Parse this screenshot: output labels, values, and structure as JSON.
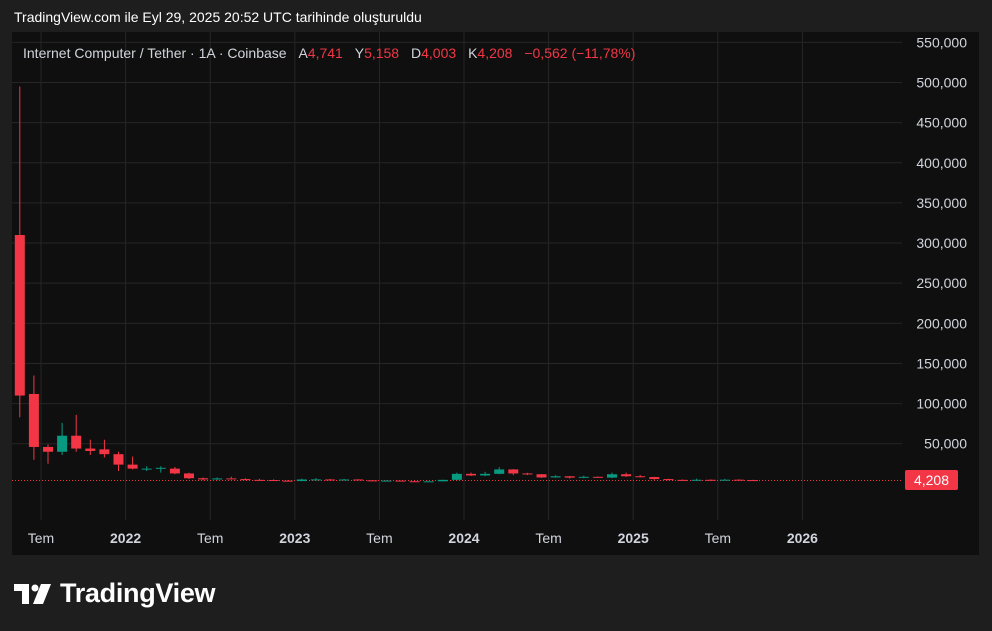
{
  "caption": "TradingView.com ile Eyl 29, 2025 20:52 UTC tarihinde oluşturuldu",
  "brand": {
    "name": "TradingView",
    "icon": "tradingview-logo-icon"
  },
  "legend": {
    "symbol": "Internet Computer / Tether · 1A · Coinbase",
    "open_label": "A",
    "open": "4,741",
    "high_label": "Y",
    "high": "5,158",
    "low_label": "D",
    "low": "4,003",
    "close_label": "K",
    "close": "4,208",
    "change": "−0,562 (−11,78%)"
  },
  "last_price_label": "4,208",
  "colors": {
    "up": "#089981",
    "down": "#f23645",
    "background": "#0f0f0f",
    "grid": "#262626",
    "axis_text": "#d1d4dc"
  },
  "chart_data": {
    "type": "candlestick",
    "title": "Internet Computer / Tether · 1A · Coinbase",
    "interval": "1 month",
    "y_axis": {
      "position": "right",
      "ylim": [
        -35,
        556
      ],
      "ticks": [
        50,
        100,
        150,
        200,
        250,
        300,
        350,
        400,
        450,
        500,
        550
      ],
      "tick_labels": [
        "50,000",
        "100,000",
        "150,000",
        "200,000",
        "250,000",
        "300,000",
        "350,000",
        "400,000",
        "450,000",
        "500,000",
        "550,000"
      ]
    },
    "x_axis": {
      "tick_labels": [
        "Tem",
        "2022",
        "Tem",
        "2023",
        "Tem",
        "2024",
        "Tem",
        "2025",
        "Tem",
        "2026"
      ],
      "tick_dates": [
        "2021-07",
        "2022-01",
        "2022-07",
        "2023-01",
        "2023-07",
        "2024-01",
        "2024-07",
        "2025-01",
        "2025-07",
        "2026-01"
      ],
      "range": [
        "2021-04",
        "2026-07"
      ]
    },
    "grid": true,
    "last_price": 4.208,
    "candles": [
      {
        "date": "2021-05",
        "open": 310,
        "high": 495,
        "low": 83,
        "close": 110
      },
      {
        "date": "2021-06",
        "open": 112,
        "high": 135,
        "low": 30,
        "close": 46
      },
      {
        "date": "2021-07",
        "open": 46,
        "high": 49,
        "low": 25,
        "close": 40
      },
      {
        "date": "2021-08",
        "open": 40,
        "high": 76,
        "low": 36,
        "close": 60
      },
      {
        "date": "2021-09",
        "open": 60,
        "high": 86,
        "low": 40,
        "close": 44
      },
      {
        "date": "2021-10",
        "open": 44,
        "high": 55,
        "low": 36,
        "close": 41
      },
      {
        "date": "2021-11",
        "open": 43,
        "high": 55,
        "low": 33,
        "close": 37
      },
      {
        "date": "2021-12",
        "open": 37,
        "high": 40,
        "low": 16,
        "close": 24
      },
      {
        "date": "2022-01",
        "open": 24,
        "high": 34,
        "low": 18,
        "close": 19
      },
      {
        "date": "2022-02",
        "open": 18,
        "high": 22,
        "low": 16,
        "close": 19
      },
      {
        "date": "2022-03",
        "open": 19,
        "high": 22,
        "low": 14,
        "close": 20
      },
      {
        "date": "2022-04",
        "open": 19,
        "high": 21,
        "low": 12,
        "close": 13
      },
      {
        "date": "2022-05",
        "open": 13,
        "high": 14,
        "low": 6,
        "close": 7
      },
      {
        "date": "2022-06",
        "open": 7,
        "high": 8,
        "low": 4.5,
        "close": 5.5
      },
      {
        "date": "2022-07",
        "open": 5.5,
        "high": 8,
        "low": 5,
        "close": 6.8
      },
      {
        "date": "2022-08",
        "open": 6.8,
        "high": 9,
        "low": 5.8,
        "close": 6
      },
      {
        "date": "2022-09",
        "open": 6,
        "high": 7,
        "low": 4.5,
        "close": 5
      },
      {
        "date": "2022-10",
        "open": 5,
        "high": 6.2,
        "low": 4.5,
        "close": 4.8
      },
      {
        "date": "2022-11",
        "open": 4.8,
        "high": 5.6,
        "low": 3.5,
        "close": 4
      },
      {
        "date": "2022-12",
        "open": 4,
        "high": 4.5,
        "low": 3.2,
        "close": 3.5
      },
      {
        "date": "2023-01",
        "open": 3.5,
        "high": 6.5,
        "low": 3.4,
        "close": 5.5
      },
      {
        "date": "2023-02",
        "open": 5.5,
        "high": 7.2,
        "low": 5,
        "close": 5.6
      },
      {
        "date": "2023-03",
        "open": 5.5,
        "high": 6.3,
        "low": 4.2,
        "close": 5.4
      },
      {
        "date": "2023-04",
        "open": 5.4,
        "high": 6.2,
        "low": 4.8,
        "close": 5.5
      },
      {
        "date": "2023-05",
        "open": 5.5,
        "high": 5.8,
        "low": 4.2,
        "close": 4.4
      },
      {
        "date": "2023-06",
        "open": 4.4,
        "high": 4.6,
        "low": 3.2,
        "close": 3.9
      },
      {
        "date": "2023-07",
        "open": 3.9,
        "high": 4.6,
        "low": 3.8,
        "close": 4.1
      },
      {
        "date": "2023-08",
        "open": 4.1,
        "high": 4.2,
        "low": 3.2,
        "close": 3.3
      },
      {
        "date": "2023-09",
        "open": 3.3,
        "high": 3.5,
        "low": 2.9,
        "close": 3.1
      },
      {
        "date": "2023-10",
        "open": 3.1,
        "high": 3.4,
        "low": 2.9,
        "close": 3.2
      },
      {
        "date": "2023-11",
        "open": 3.2,
        "high": 5.2,
        "low": 3.1,
        "close": 5
      },
      {
        "date": "2023-12",
        "open": 5,
        "high": 14,
        "low": 4.8,
        "close": 12.5
      },
      {
        "date": "2024-01",
        "open": 12.5,
        "high": 14,
        "low": 9.8,
        "close": 10.5
      },
      {
        "date": "2024-02",
        "open": 10.5,
        "high": 15,
        "low": 9.6,
        "close": 12.5
      },
      {
        "date": "2024-03",
        "open": 12.5,
        "high": 20.8,
        "low": 12,
        "close": 18
      },
      {
        "date": "2024-04",
        "open": 18,
        "high": 18.5,
        "low": 11,
        "close": 13
      },
      {
        "date": "2024-05",
        "open": 13,
        "high": 13.8,
        "low": 11,
        "close": 12
      },
      {
        "date": "2024-06",
        "open": 12,
        "high": 12.2,
        "low": 7.5,
        "close": 8
      },
      {
        "date": "2024-07",
        "open": 8,
        "high": 10.8,
        "low": 7.8,
        "close": 9.5
      },
      {
        "date": "2024-08",
        "open": 9.5,
        "high": 9.8,
        "low": 6.5,
        "close": 7.8
      },
      {
        "date": "2024-09",
        "open": 7.8,
        "high": 10.2,
        "low": 7,
        "close": 8.8
      },
      {
        "date": "2024-10",
        "open": 8.8,
        "high": 9.2,
        "low": 7.5,
        "close": 7.8
      },
      {
        "date": "2024-11",
        "open": 7.8,
        "high": 14,
        "low": 7.2,
        "close": 12
      },
      {
        "date": "2024-12",
        "open": 12,
        "high": 14,
        "low": 8.5,
        "close": 9.5
      },
      {
        "date": "2025-01",
        "open": 9.5,
        "high": 11,
        "low": 8,
        "close": 8.5
      },
      {
        "date": "2025-02",
        "open": 8.5,
        "high": 8.8,
        "low": 5.2,
        "close": 6
      },
      {
        "date": "2025-03",
        "open": 6,
        "high": 6.5,
        "low": 4.5,
        "close": 5
      },
      {
        "date": "2025-04",
        "open": 5,
        "high": 5.5,
        "low": 4.2,
        "close": 4.9
      },
      {
        "date": "2025-05",
        "open": 4.9,
        "high": 6.5,
        "low": 4.5,
        "close": 5.1
      },
      {
        "date": "2025-06",
        "open": 5.1,
        "high": 5.6,
        "low": 4.3,
        "close": 4.6
      },
      {
        "date": "2025-07",
        "open": 4.6,
        "high": 6.2,
        "low": 4.2,
        "close": 5.2
      },
      {
        "date": "2025-08",
        "open": 5.2,
        "high": 5.8,
        "low": 4.5,
        "close": 4.7
      },
      {
        "date": "2025-09",
        "open": 4.741,
        "high": 5.158,
        "low": 4.003,
        "close": 4.208
      }
    ]
  }
}
